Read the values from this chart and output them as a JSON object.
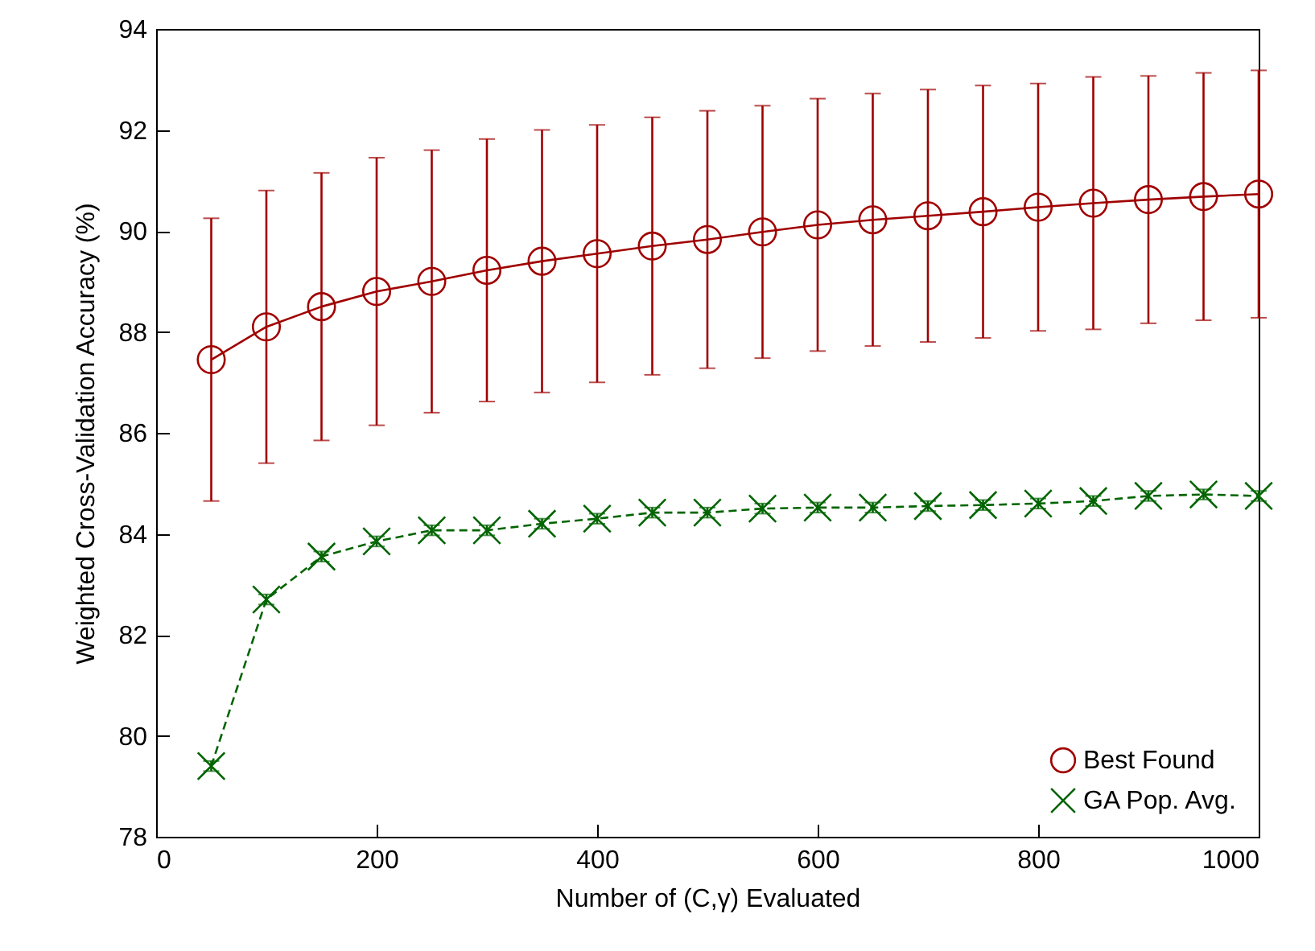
{
  "chart_data": {
    "type": "line",
    "xlabel": "Number of (C,γ) Evaluated",
    "ylabel": "Weighted Cross-Validation Accuracy (%)",
    "x": [
      50,
      100,
      150,
      200,
      250,
      300,
      350,
      400,
      450,
      500,
      550,
      600,
      650,
      700,
      750,
      800,
      850,
      900,
      950,
      1000
    ],
    "series": [
      {
        "name": "Best Found",
        "color": "#a00000",
        "marker": "circle",
        "line_style": "solid",
        "values": [
          87.45,
          88.1,
          88.5,
          88.8,
          89.0,
          89.22,
          89.4,
          89.55,
          89.7,
          89.83,
          89.98,
          90.12,
          90.22,
          90.3,
          90.38,
          90.47,
          90.55,
          90.62,
          90.68,
          90.73
        ],
        "errors": [
          2.8,
          2.7,
          2.65,
          2.65,
          2.6,
          2.6,
          2.6,
          2.55,
          2.55,
          2.55,
          2.5,
          2.5,
          2.5,
          2.5,
          2.5,
          2.45,
          2.5,
          2.45,
          2.45,
          2.45
        ]
      },
      {
        "name": "GA Pop. Avg.",
        "color": "#006400",
        "marker": "cross",
        "line_style": "dashed",
        "values": [
          79.4,
          82.7,
          83.55,
          83.85,
          84.07,
          84.07,
          84.2,
          84.3,
          84.42,
          84.42,
          84.5,
          84.52,
          84.52,
          84.55,
          84.57,
          84.6,
          84.65,
          84.75,
          84.78,
          84.75
        ],
        "errors": [
          0.1,
          0.1,
          0.1,
          0.1,
          0.1,
          0.1,
          0.1,
          0.1,
          0.1,
          0.1,
          0.1,
          0.1,
          0.1,
          0.1,
          0.1,
          0.1,
          0.1,
          0.1,
          0.1,
          0.1
        ]
      }
    ],
    "xlim": [
      0,
      1000
    ],
    "xticks": [
      0,
      200,
      400,
      600,
      800,
      1000
    ],
    "ylim": [
      78,
      94
    ],
    "yticks": [
      78,
      80,
      82,
      84,
      86,
      88,
      90,
      92,
      94
    ],
    "legend": "bottom right"
  }
}
